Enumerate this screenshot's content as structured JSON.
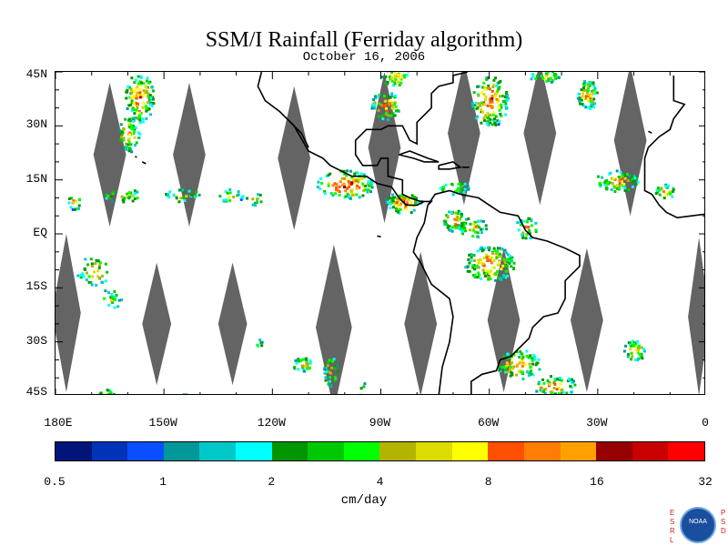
{
  "title": "SSM/I Rainfall (Ferriday algorithm)",
  "date": "October 16, 2006",
  "units": "cm/day",
  "lat_labels": [
    "45N",
    "30N",
    "15N",
    "EQ",
    "15S",
    "30S",
    "45S"
  ],
  "lon_labels": [
    "180E",
    "150W",
    "120W",
    "90W",
    "60W",
    "30W",
    "0"
  ],
  "colorbar": {
    "colors": [
      "#00157a",
      "#0033b8",
      "#0a4fff",
      "#009898",
      "#00c8c8",
      "#00ffff",
      "#009600",
      "#00c800",
      "#00ff00",
      "#b4b400",
      "#dcdc00",
      "#ffff00",
      "#ff5000",
      "#ff7d00",
      "#ffa000",
      "#960000",
      "#c80000",
      "#ff0000"
    ],
    "tick_labels": [
      "0.5",
      "1",
      "2",
      "4",
      "8",
      "16",
      "32"
    ]
  },
  "map": {
    "lon_range": [
      -180,
      0
    ],
    "lat_range": [
      -45,
      45
    ],
    "gap_color": "#646464",
    "land_outline_color": "#000000"
  },
  "credits": {
    "left_letters": [
      "E",
      "S",
      "R",
      "L"
    ],
    "right_letters": [
      "P",
      "S",
      "D"
    ],
    "logo_text": "NOAA"
  }
}
